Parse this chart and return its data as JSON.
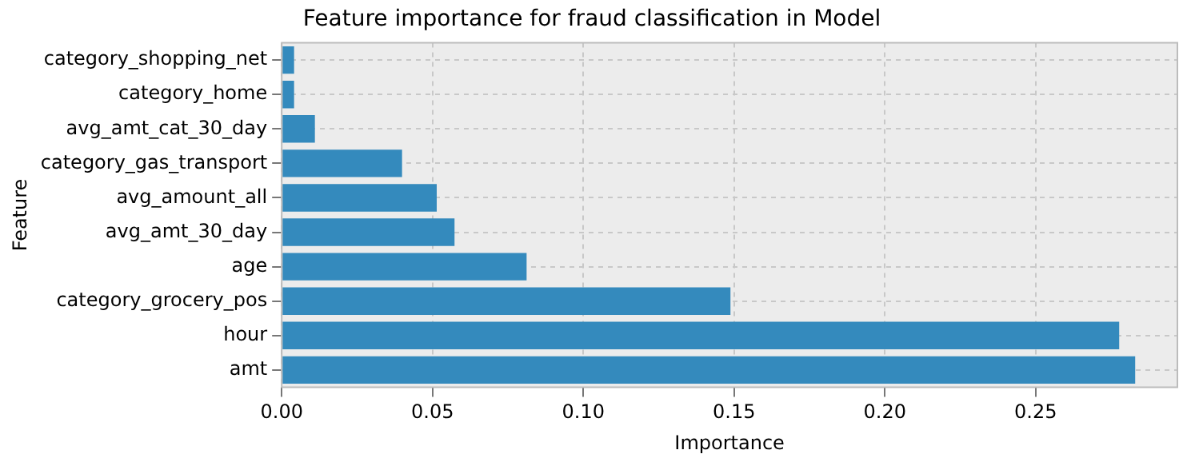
{
  "chart_data": {
    "type": "bar",
    "orientation": "horizontal",
    "title": "Feature importance for fraud classification in Model",
    "xlabel": "Importance",
    "ylabel": "Feature",
    "categories": [
      "category_shopping_net",
      "category_home",
      "avg_amt_cat_30_day",
      "category_gas_transport",
      "avg_amount_all",
      "avg_amt_30_day",
      "age",
      "category_grocery_pos",
      "hour",
      "amt"
    ],
    "values": [
      0.0041,
      0.0041,
      0.011,
      0.0399,
      0.0514,
      0.0573,
      0.0812,
      0.1488,
      0.2777,
      0.283
    ],
    "color": "#348abd",
    "xlim": [
      0,
      0.297
    ],
    "xticks": [
      {
        "value": 0,
        "label": "0.00"
      },
      {
        "value": 0.05,
        "label": "0.05"
      },
      {
        "value": 0.1,
        "label": "0.10"
      },
      {
        "value": 0.15,
        "label": "0.15"
      },
      {
        "value": 0.2,
        "label": "0.20"
      },
      {
        "value": 0.25,
        "label": "0.25"
      }
    ],
    "grid": true,
    "legend": false
  }
}
